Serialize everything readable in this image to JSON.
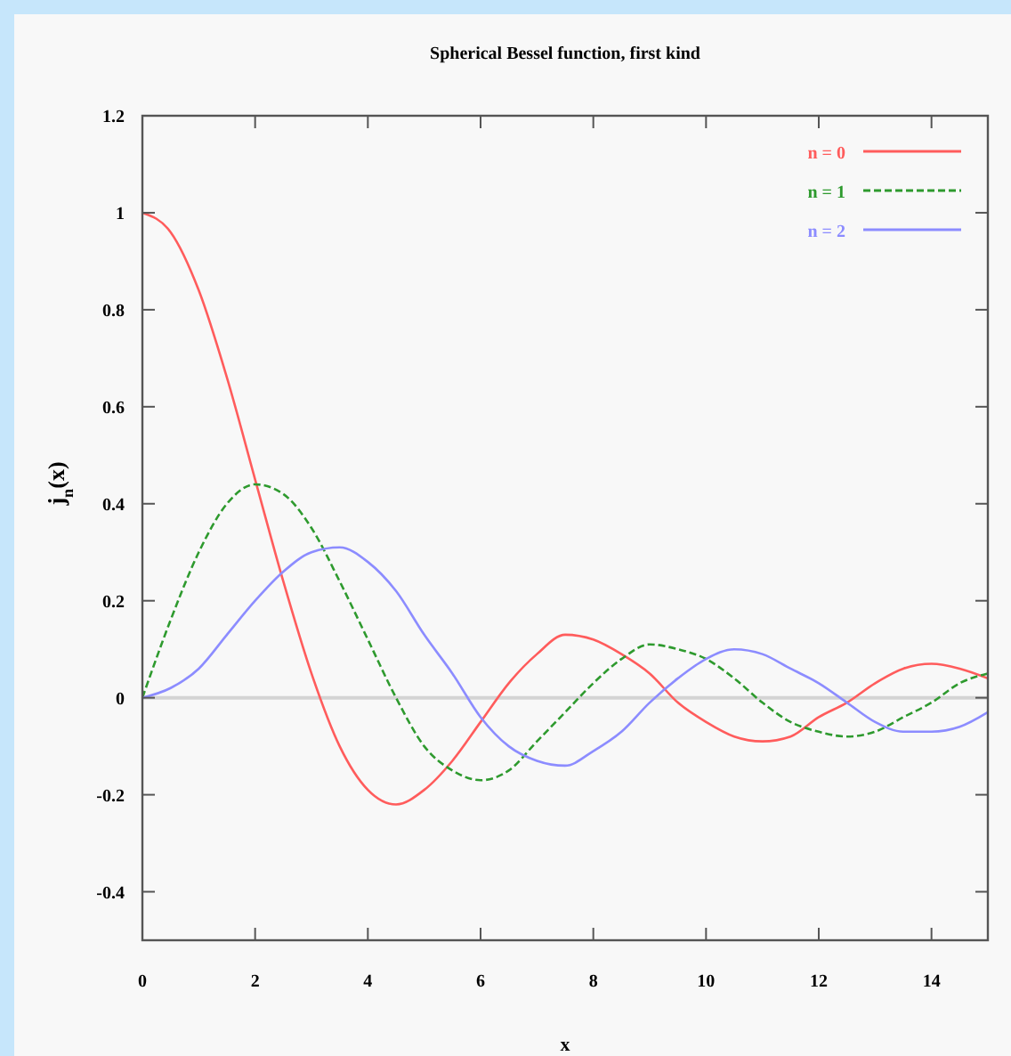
{
  "chart_data": {
    "type": "line",
    "title": "Spherical Bessel function, first kind",
    "xlabel": "x",
    "ylabel": "j$_{n}$(x)",
    "x": [
      0,
      0.5,
      1,
      1.5,
      2,
      2.5,
      3,
      3.5,
      4,
      4.5,
      5,
      5.5,
      6,
      6.5,
      7,
      7.5,
      8,
      8.5,
      9,
      9.5,
      10,
      10.5,
      11,
      11.5,
      12,
      12.5,
      13,
      13.5,
      14,
      14.5,
      15
    ],
    "series": [
      {
        "name": "n = 0",
        "color": "#ff5c5c",
        "line_style": "solid",
        "values": [
          1,
          0.96,
          0.84,
          0.66,
          0.45,
          0.24,
          0.05,
          -0.1,
          -0.19,
          -0.22,
          -0.19,
          -0.13,
          -0.05,
          0.03,
          0.09,
          0.13,
          0.12,
          0.09,
          0.05,
          -0.01,
          -0.05,
          -0.08,
          -0.09,
          -0.08,
          -0.04,
          -0.01,
          0.03,
          0.06,
          0.07,
          0.06,
          0.04
        ]
      },
      {
        "name": "n = 1",
        "color": "#2e9a2e",
        "line_style": "dashed",
        "values": [
          0,
          0.16,
          0.3,
          0.4,
          0.44,
          0.42,
          0.35,
          0.24,
          0.12,
          0,
          -0.1,
          -0.15,
          -0.17,
          -0.15,
          -0.09,
          -0.03,
          0.03,
          0.08,
          0.11,
          0.1,
          0.08,
          0.04,
          -0.01,
          -0.05,
          -0.07,
          -0.08,
          -0.07,
          -0.04,
          -0.01,
          0.03,
          0.05
        ]
      },
      {
        "name": "n = 2",
        "color": "#8c8cff",
        "line_style": "solid",
        "values": [
          0,
          0.02,
          0.06,
          0.13,
          0.2,
          0.26,
          0.3,
          0.31,
          0.28,
          0.22,
          0.13,
          0.05,
          -0.04,
          -0.1,
          -0.13,
          -0.14,
          -0.11,
          -0.07,
          -0.01,
          0.04,
          0.08,
          0.1,
          0.09,
          0.06,
          0.03,
          -0.01,
          -0.05,
          -0.07,
          -0.07,
          -0.06,
          -0.03
        ]
      }
    ],
    "xlim": [
      0,
      15
    ],
    "xticks": [
      0,
      2,
      4,
      6,
      8,
      10,
      12,
      14
    ],
    "ylim": [
      -0.5,
      1.2
    ],
    "yticks": [
      -0.4,
      -0.2,
      0,
      0.2,
      0.4,
      0.6,
      0.8,
      1,
      1.2
    ],
    "ref_lines": [
      {
        "axis": "y",
        "value": 0,
        "color": "#d4d4d4"
      }
    ],
    "legend": "top right",
    "grid": false
  }
}
